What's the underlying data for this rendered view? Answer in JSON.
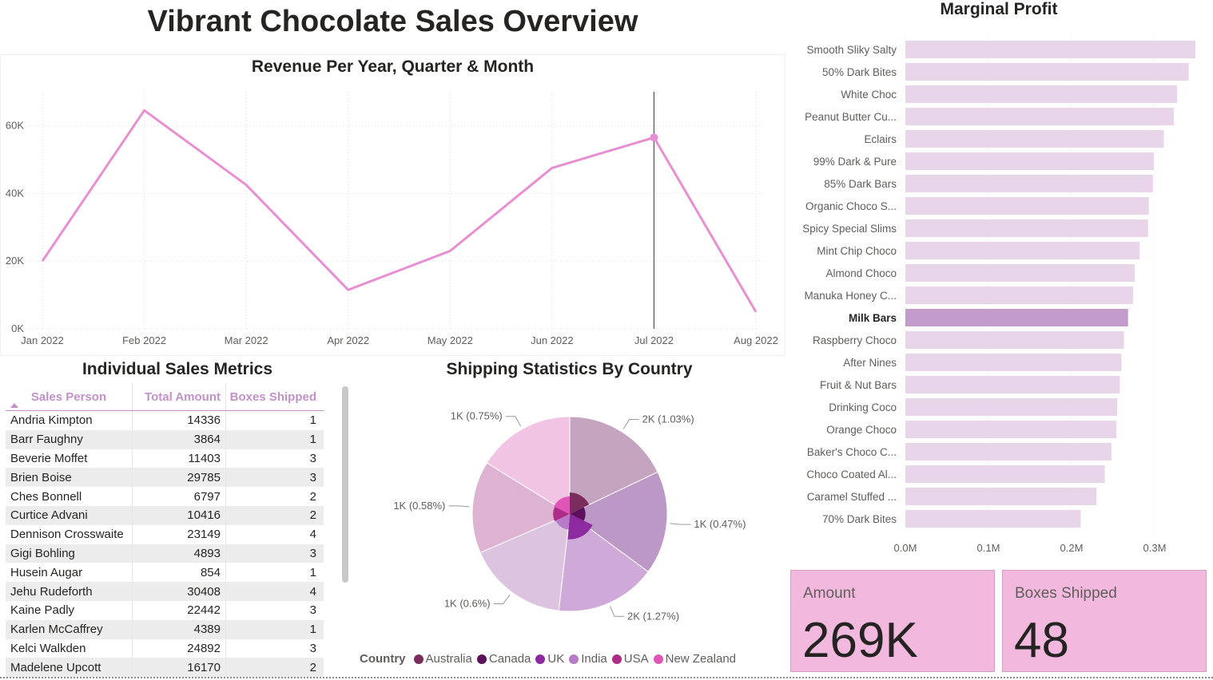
{
  "page_title": "Vibrant Chocolate Sales Overview",
  "chart_data": [
    {
      "type": "line",
      "title": "Revenue Per Year, Quarter & Month",
      "categories": [
        "Jan 2022",
        "Feb 2022",
        "Mar 2022",
        "Apr 2022",
        "May 2022",
        "Jun 2022",
        "Jul 2022",
        "Aug 2022"
      ],
      "values": [
        20000,
        64500,
        42500,
        11500,
        23000,
        47500,
        56500,
        5000
      ],
      "y_ticks": [
        "0K",
        "20K",
        "40K",
        "60K"
      ],
      "ylim": [
        0,
        70000
      ],
      "highlight": "Jul 2022",
      "color": "#e88fd2"
    },
    {
      "type": "bar",
      "orientation": "horizontal",
      "title": "Marginal Profit",
      "categories": [
        "Smooth Sliky Salty",
        "50% Dark Bites",
        "White Choc",
        "Peanut Butter Cu...",
        "Eclairs",
        "99% Dark & Pure",
        "85% Dark Bars",
        "Organic Choco S...",
        "Spicy Special Slims",
        "Mint Chip Choco",
        "Almond Choco",
        "Manuka Honey C...",
        "Milk Bars",
        "Raspberry Choco",
        "After Nines",
        "Fruit & Nut Bars",
        "Drinking Coco",
        "Orange Choco",
        "Baker's Choco C...",
        "Choco Coated Al...",
        "Caramel Stuffed ...",
        "70% Dark Bites"
      ],
      "values": [
        349000,
        341000,
        327000,
        323000,
        311000,
        299000,
        298000,
        293000,
        292000,
        282000,
        276000,
        274000,
        268000,
        263000,
        260000,
        258000,
        255000,
        254000,
        248000,
        240000,
        230000,
        211000
      ],
      "x_ticks": [
        "0.0M",
        "0.1M",
        "0.2M",
        "0.3M"
      ],
      "xlim": [
        0,
        350000
      ],
      "highlight": "Milk Bars",
      "bar_color": "#e8d5ea",
      "highlight_color": "#c49ccc"
    },
    {
      "type": "pie",
      "title": "Shipping Statistics By Country",
      "legend_title": "Country",
      "legend": [
        {
          "name": "Australia",
          "color": "#7b2d5e"
        },
        {
          "name": "Canada",
          "color": "#5c0f5a"
        },
        {
          "name": "UK",
          "color": "#8e2aa0"
        },
        {
          "name": "India",
          "color": "#b77ac6"
        },
        {
          "name": "USA",
          "color": "#ad2c88"
        },
        {
          "name": "New Zealand",
          "color": "#e055b8"
        }
      ],
      "outer_slices": [
        {
          "label": "2K (1.03%)",
          "value": 17.9,
          "color": "#c4a4bf"
        },
        {
          "label": "1K (0.47%)",
          "value": 17.2,
          "color": "#bb98c6"
        },
        {
          "label": "2K (1.27%)",
          "value": 16.7,
          "color": "#cfa9d8"
        },
        {
          "label": "1K (0.6%)",
          "value": 16.7,
          "color": "#dcc4e1"
        },
        {
          "label": "1K (0.58%)",
          "value": 15.3,
          "color": "#ddb2d2"
        },
        {
          "label": "1K (0.75%)",
          "value": 16.2,
          "color": "#f1c4e4"
        }
      ],
      "inner_slices": [
        {
          "value": 15,
          "radius_ratio": 0.22,
          "color": "#7b2d5e"
        },
        {
          "value": 12,
          "radius_ratio": 0.16,
          "color": "#5c0f5a"
        },
        {
          "value": 16,
          "radius_ratio": 0.26,
          "color": "#8e2aa0"
        },
        {
          "value": 14,
          "radius_ratio": 0.16,
          "color": "#b77ac6"
        },
        {
          "value": 12,
          "radius_ratio": 0.17,
          "color": "#ad2c88"
        },
        {
          "value": 15,
          "radius_ratio": 0.18,
          "color": "#e055b8"
        }
      ]
    }
  ],
  "table": {
    "title": "Individual Sales Metrics",
    "headers": [
      "Sales Person",
      "Total Amount",
      "Boxes Shipped"
    ],
    "rows": [
      [
        "Andria Kimpton",
        "14336",
        "1"
      ],
      [
        "Barr Faughny",
        "3864",
        "1"
      ],
      [
        "Beverie Moffet",
        "11403",
        "3"
      ],
      [
        "Brien Boise",
        "29785",
        "3"
      ],
      [
        "Ches Bonnell",
        "6797",
        "2"
      ],
      [
        "Curtice Advani",
        "10416",
        "2"
      ],
      [
        "Dennison Crosswaite",
        "23149",
        "4"
      ],
      [
        "Gigi Bohling",
        "4893",
        "3"
      ],
      [
        "Husein Augar",
        "854",
        "1"
      ],
      [
        "Jehu Rudeforth",
        "30408",
        "4"
      ],
      [
        "Kaine Padly",
        "22442",
        "3"
      ],
      [
        "Karlen McCaffrey",
        "4389",
        "1"
      ],
      [
        "Kelci Walkden",
        "24892",
        "3"
      ],
      [
        "Madelene Upcott",
        "16170",
        "2"
      ]
    ]
  },
  "cards": {
    "amount_label": "Amount",
    "amount_value": "269K",
    "boxes_label": "Boxes Shipped",
    "boxes_value": "48"
  }
}
